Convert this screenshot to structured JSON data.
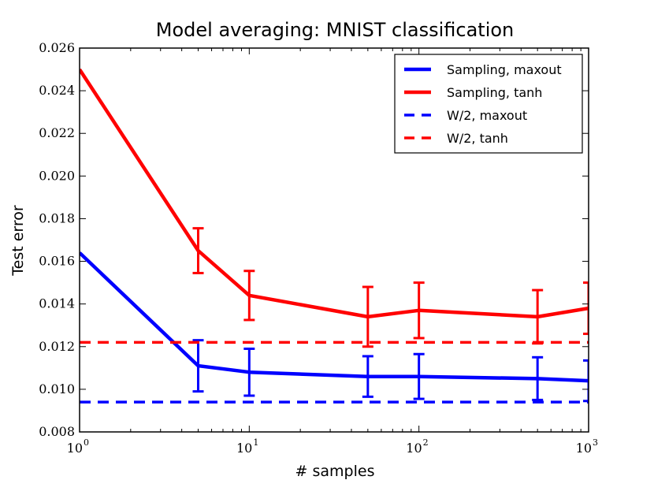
{
  "chart_data": {
    "type": "line",
    "title": "Model averaging: MNIST classification",
    "xlabel": "# samples",
    "ylabel": "Test error",
    "xscale": "log",
    "xlim": [
      1,
      1000
    ],
    "ylim": [
      0.008,
      0.026
    ],
    "x_ticks": [
      {
        "value": 1,
        "base": "10",
        "exp": "0"
      },
      {
        "value": 10,
        "base": "10",
        "exp": "1"
      },
      {
        "value": 100,
        "base": "10",
        "exp": "2"
      },
      {
        "value": 1000,
        "base": "10",
        "exp": "3"
      }
    ],
    "y_ticks": [
      {
        "value": 0.008,
        "label": "0.008"
      },
      {
        "value": 0.01,
        "label": "0.010"
      },
      {
        "value": 0.012,
        "label": "0.012"
      },
      {
        "value": 0.014,
        "label": "0.014"
      },
      {
        "value": 0.016,
        "label": "0.016"
      },
      {
        "value": 0.018,
        "label": "0.018"
      },
      {
        "value": 0.02,
        "label": "0.020"
      },
      {
        "value": 0.022,
        "label": "0.022"
      },
      {
        "value": 0.024,
        "label": "0.024"
      },
      {
        "value": 0.026,
        "label": "0.026"
      }
    ],
    "grid": false,
    "legend_position": "top-right",
    "series": [
      {
        "name": "Sampling, maxout",
        "color": "#0000ff",
        "style": "solid",
        "x": [
          1,
          5,
          10,
          50,
          100,
          500,
          1000
        ],
        "y": [
          0.0164,
          0.0111,
          0.0108,
          0.0106,
          0.0106,
          0.0105,
          0.0104
        ],
        "err": [
          0,
          0.0012,
          0.0011,
          0.00095,
          0.00105,
          0.001,
          0.00095
        ]
      },
      {
        "name": "Sampling, tanh",
        "color": "#ff0000",
        "style": "solid",
        "x": [
          1,
          5,
          10,
          50,
          100,
          500,
          1000
        ],
        "y": [
          0.025,
          0.0165,
          0.0144,
          0.0134,
          0.0137,
          0.0134,
          0.0138
        ],
        "err": [
          0,
          0.00105,
          0.00115,
          0.0014,
          0.0013,
          0.00125,
          0.0012
        ]
      },
      {
        "name": "W/2, maxout",
        "color": "#0000ff",
        "style": "dashed",
        "constant": 0.0094
      },
      {
        "name": "W/2, tanh",
        "color": "#ff0000",
        "style": "dashed",
        "constant": 0.0122
      }
    ]
  }
}
